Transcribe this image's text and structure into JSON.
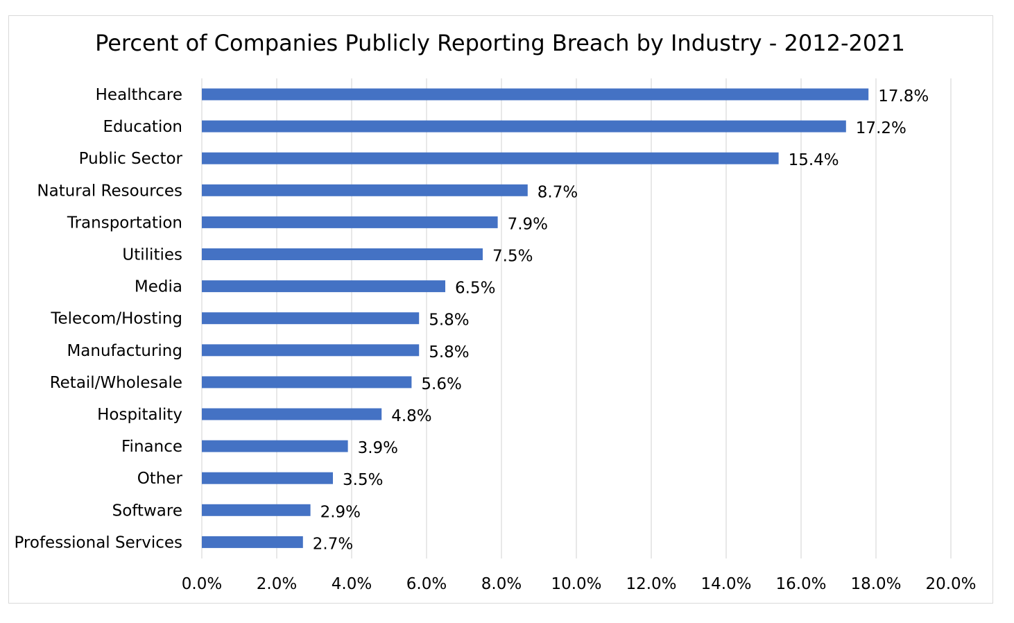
{
  "chart_data": {
    "type": "bar",
    "orientation": "horizontal",
    "title": "Percent of Companies Publicly Reporting Breach by Industry - 2012-2021",
    "xlabel": "",
    "ylabel": "",
    "categories": [
      "Healthcare",
      "Education",
      "Public Sector",
      "Natural Resources",
      "Transportation",
      "Utilities",
      "Media",
      "Telecom/Hosting",
      "Manufacturing",
      "Retail/Wholesale",
      "Hospitality",
      "Finance",
      "Other",
      "Software",
      "Professional Services"
    ],
    "values": [
      17.8,
      17.2,
      15.4,
      8.7,
      7.9,
      7.5,
      6.5,
      5.8,
      5.8,
      5.6,
      4.8,
      3.9,
      3.5,
      2.9,
      2.7
    ],
    "value_labels": [
      "17.8%",
      "17.2%",
      "15.4%",
      "8.7%",
      "7.9%",
      "7.5%",
      "6.5%",
      "5.8%",
      "5.8%",
      "5.6%",
      "4.8%",
      "3.9%",
      "3.5%",
      "2.9%",
      "2.7%"
    ],
    "xlim": [
      0,
      20
    ],
    "x_ticks": [
      0,
      2,
      4,
      6,
      8,
      10,
      12,
      14,
      16,
      18,
      20
    ],
    "x_tick_labels": [
      "0.0%",
      "2.0%",
      "4.0%",
      "6.0%",
      "8.0%",
      "10.0%",
      "12.0%",
      "14.0%",
      "16.0%",
      "18.0%",
      "20.0%"
    ],
    "grid": "vertical",
    "legend": "none",
    "colors": {
      "bar": "#4472C4",
      "grid": "#d9d9d9",
      "frame": "#d9d9d9",
      "text": "#000000"
    }
  }
}
